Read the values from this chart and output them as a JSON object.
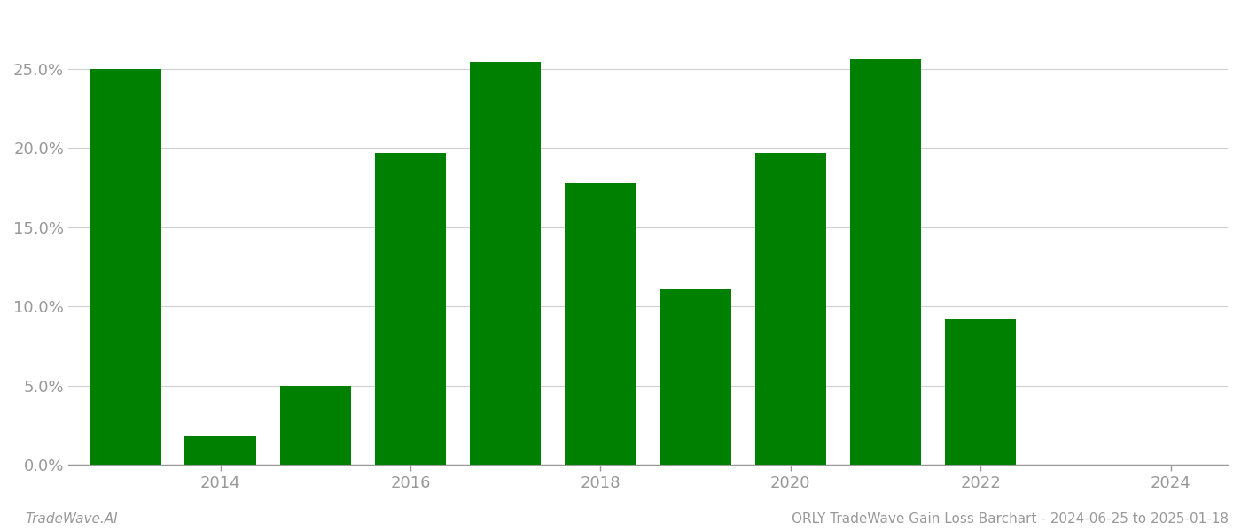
{
  "years": [
    2013,
    2014,
    2015,
    2016,
    2017,
    2018,
    2019,
    2020,
    2021,
    2022,
    2023
  ],
  "values": [
    0.25,
    0.018,
    0.05,
    0.197,
    0.254,
    0.178,
    0.111,
    0.197,
    0.256,
    0.092,
    0.0
  ],
  "bar_color": "#008000",
  "background_color": "#ffffff",
  "yticks": [
    0.0,
    0.05,
    0.1,
    0.15,
    0.2,
    0.25
  ],
  "ytick_labels": [
    "0.0%",
    "5.0%",
    "10.0%",
    "15.0%",
    "20.0%",
    "25.0%"
  ],
  "xtick_positions": [
    2014,
    2016,
    2018,
    2020,
    2022,
    2024
  ],
  "xtick_labels": [
    "2014",
    "2016",
    "2018",
    "2020",
    "2022",
    "2024"
  ],
  "xlim": [
    2012.4,
    2024.6
  ],
  "ylim": [
    0.0,
    0.285
  ],
  "footer_left": "TradeWave.AI",
  "footer_right": "ORLY TradeWave Gain Loss Barchart - 2024-06-25 to 2025-01-18",
  "grid_color": "#d0d0d0",
  "tick_color": "#999999",
  "footer_fontsize": 11,
  "bar_width": 0.75
}
